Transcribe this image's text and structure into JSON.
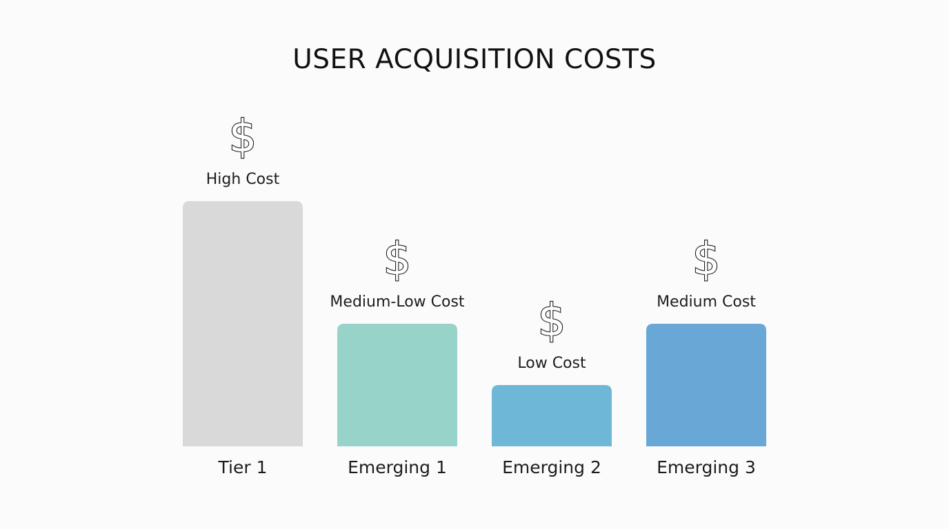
{
  "chart_data": {
    "type": "bar",
    "title": "USER ACQUISITION COSTS",
    "categories": [
      "Tier 1",
      "Emerging 1",
      "Emerging 2",
      "Emerging 3"
    ],
    "values": [
      4,
      2,
      1,
      2
    ],
    "bar_labels": [
      "High Cost",
      "Medium-Low Cost",
      "Low Cost",
      "Medium Cost"
    ],
    "icon": "dollar-sign-icon",
    "icon_glyph": "$",
    "colors": [
      "#d9d9d9",
      "#97d3c9",
      "#6fb7d7",
      "#69a8d6"
    ],
    "ylim": [
      0,
      4
    ],
    "grid": false,
    "legend": "none"
  }
}
